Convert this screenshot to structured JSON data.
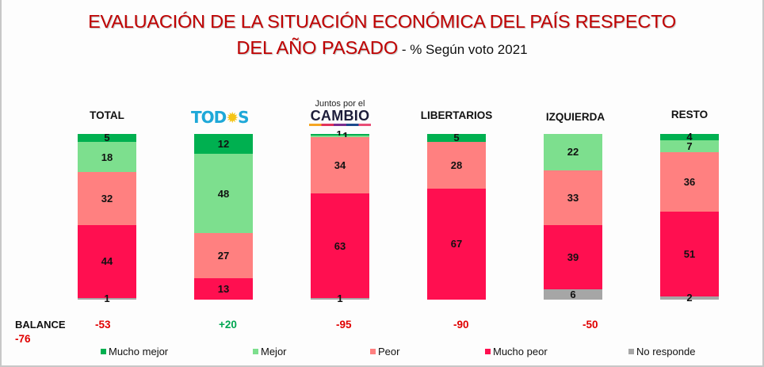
{
  "title": {
    "line1": "EVALUACIÓN DE LA SITUACIÓN ECONÓMICA DEL PAÍS RESPECTO",
    "line2": "DEL AÑO PASADO",
    "subtitle": " - % Según voto 2021"
  },
  "headers": {
    "total": "TOTAL",
    "todos_logo": {
      "text_before": "TOD",
      "icon": "sun-icon",
      "text_after": "S"
    },
    "jxc_logo": {
      "top": "Juntos por el",
      "bottom": "CAMBIO"
    },
    "libertarios": "LIBERTARIOS",
    "izquierda": "IZQUIERDA",
    "resto": "RESTO"
  },
  "colors": {
    "mucho_mejor": "#00b050",
    "mejor": "#7ddf8e",
    "peor": "#ff8080",
    "mucho_peor": "#ff0f50",
    "no_responde": "#a6a6a6",
    "negative": "#e00000",
    "positive": "#00a651"
  },
  "balance": {
    "label": "BALANCE",
    "values": [
      "-53",
      "+20",
      "-95",
      "-90",
      "-50",
      "-76"
    ]
  },
  "chart_data": {
    "type": "bar",
    "stacked": true,
    "title": "EVALUACIÓN DE LA SITUACIÓN ECONÓMICA DEL PAÍS RESPECTO DEL AÑO PASADO - % Según voto 2021",
    "categories": [
      "TOTAL",
      "TODOS",
      "Juntos por el CAMBIO",
      "LIBERTARIOS",
      "IZQUIERDA",
      "RESTO"
    ],
    "series": [
      {
        "name": "Mucho mejor",
        "values": [
          5,
          12,
          1,
          5,
          0,
          4
        ]
      },
      {
        "name": "Mejor",
        "values": [
          18,
          48,
          1,
          0,
          22,
          7
        ]
      },
      {
        "name": "Peor",
        "values": [
          32,
          27,
          34,
          28,
          33,
          36
        ]
      },
      {
        "name": "Mucho peor",
        "values": [
          44,
          13,
          63,
          67,
          39,
          51
        ]
      },
      {
        "name": "No responde",
        "values": [
          1,
          0,
          1,
          0,
          6,
          2
        ]
      }
    ],
    "ylim": [
      0,
      100
    ],
    "ylabel": "%",
    "xlabel": "",
    "grid": false,
    "legend": "bottom",
    "legend_entries": [
      "Mucho mejor",
      "Mejor",
      "Peor",
      "Mucho peor",
      "No responde"
    ]
  }
}
